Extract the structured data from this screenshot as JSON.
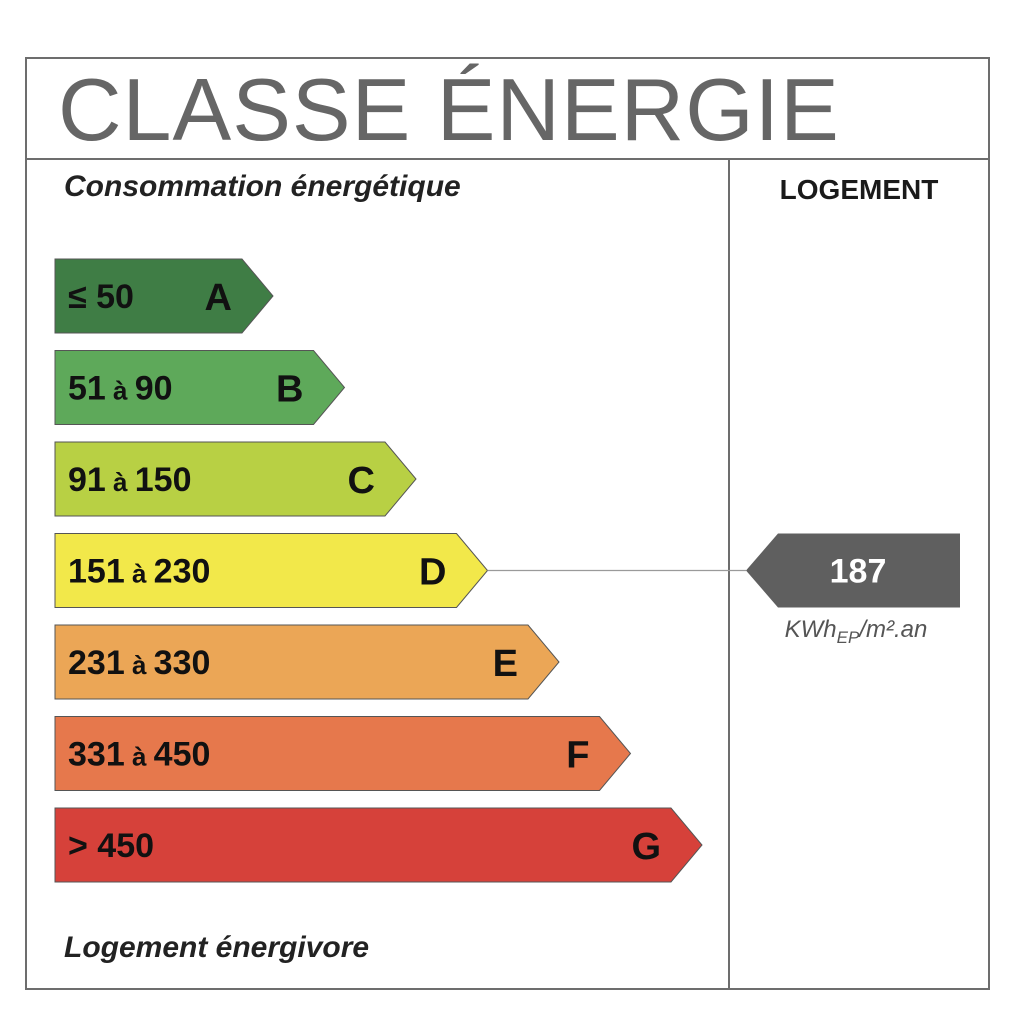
{
  "title": "CLASSE ÉNERGIE",
  "subtitle": "Consommation énergétique",
  "column_header": "LOGEMENT",
  "footer": "Logement énergivore",
  "classes": [
    {
      "letter": "A",
      "min": "≤ 50",
      "sep": "",
      "max": "",
      "color": "#3f7d45"
    },
    {
      "letter": "B",
      "min": "51",
      "sep": "à",
      "max": "90",
      "color": "#5ea95a"
    },
    {
      "letter": "C",
      "min": "91",
      "sep": "à",
      "max": "150",
      "color": "#b8d044"
    },
    {
      "letter": "D",
      "min": "151",
      "sep": "à",
      "max": "230",
      "color": "#f2e84a"
    },
    {
      "letter": "E",
      "min": "231",
      "sep": "à",
      "max": "330",
      "color": "#eba656"
    },
    {
      "letter": "F",
      "min": "331",
      "sep": "à",
      "max": "450",
      "color": "#e6784c"
    },
    {
      "letter": "G",
      "min": "> 450",
      "sep": "",
      "max": "",
      "color": "#d6413a"
    }
  ],
  "indicator": {
    "value": "187",
    "class": "D",
    "unit_main": "KWh",
    "unit_sub": "EP",
    "unit_tail": "/m².an",
    "color": "#5f5f5f"
  }
}
